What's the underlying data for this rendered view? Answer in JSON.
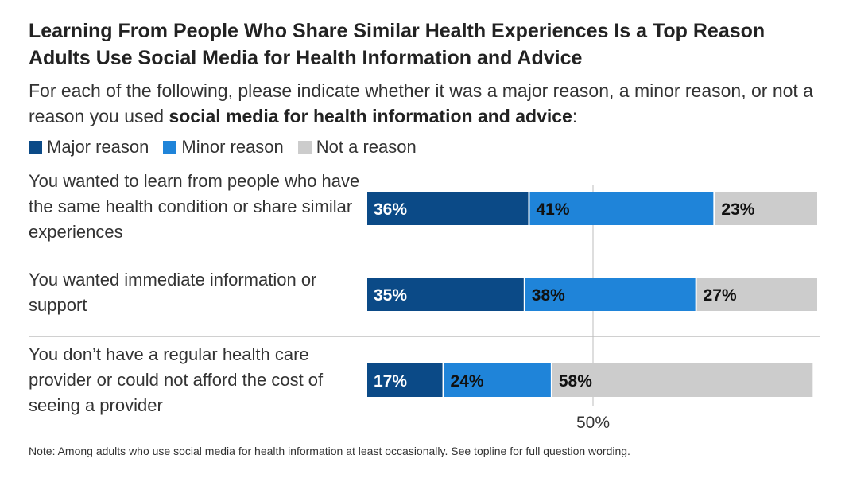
{
  "title": "Learning From People Who Share Similar Health Experiences Is a Top Reason Adults Use Social Media for Health Information and Advice",
  "subtitle_prefix": "For each of the following, please indicate whether it was a major reason, a minor reason, or not a reason you used ",
  "subtitle_bold": "social media for health information and advice",
  "subtitle_suffix": ":",
  "note": "Note: Among adults who use social media for health information at least occasionally. See topline for full question wording.",
  "colors": {
    "major": "#0b4a87",
    "minor": "#1f84d9",
    "not": "#cccccc"
  },
  "chart_data": {
    "type": "bar",
    "orientation": "horizontal",
    "stacked": true,
    "categories": [
      "You wanted to learn from people who have the same health condition or share similar experiences",
      "You wanted immediate information or support",
      "You don’t have a regular health care provider or could not afford the cost of seeing a provider"
    ],
    "series": [
      {
        "name": "Major reason",
        "values": [
          36,
          35,
          17
        ],
        "labels": [
          "36%",
          "35%",
          "17%"
        ],
        "color": "#0b4a87"
      },
      {
        "name": "Minor reason",
        "values": [
          41,
          38,
          24
        ],
        "labels": [
          "41%",
          "38%",
          "24%"
        ],
        "color": "#1f84d9"
      },
      {
        "name": "Not a reason",
        "values": [
          23,
          27,
          58
        ],
        "labels": [
          "23%",
          "27%",
          "58%"
        ],
        "color": "#cccccc"
      }
    ],
    "reference_line": {
      "value": 50,
      "label": "50%"
    },
    "xlim": [
      0,
      100
    ],
    "legend": "top-left"
  }
}
